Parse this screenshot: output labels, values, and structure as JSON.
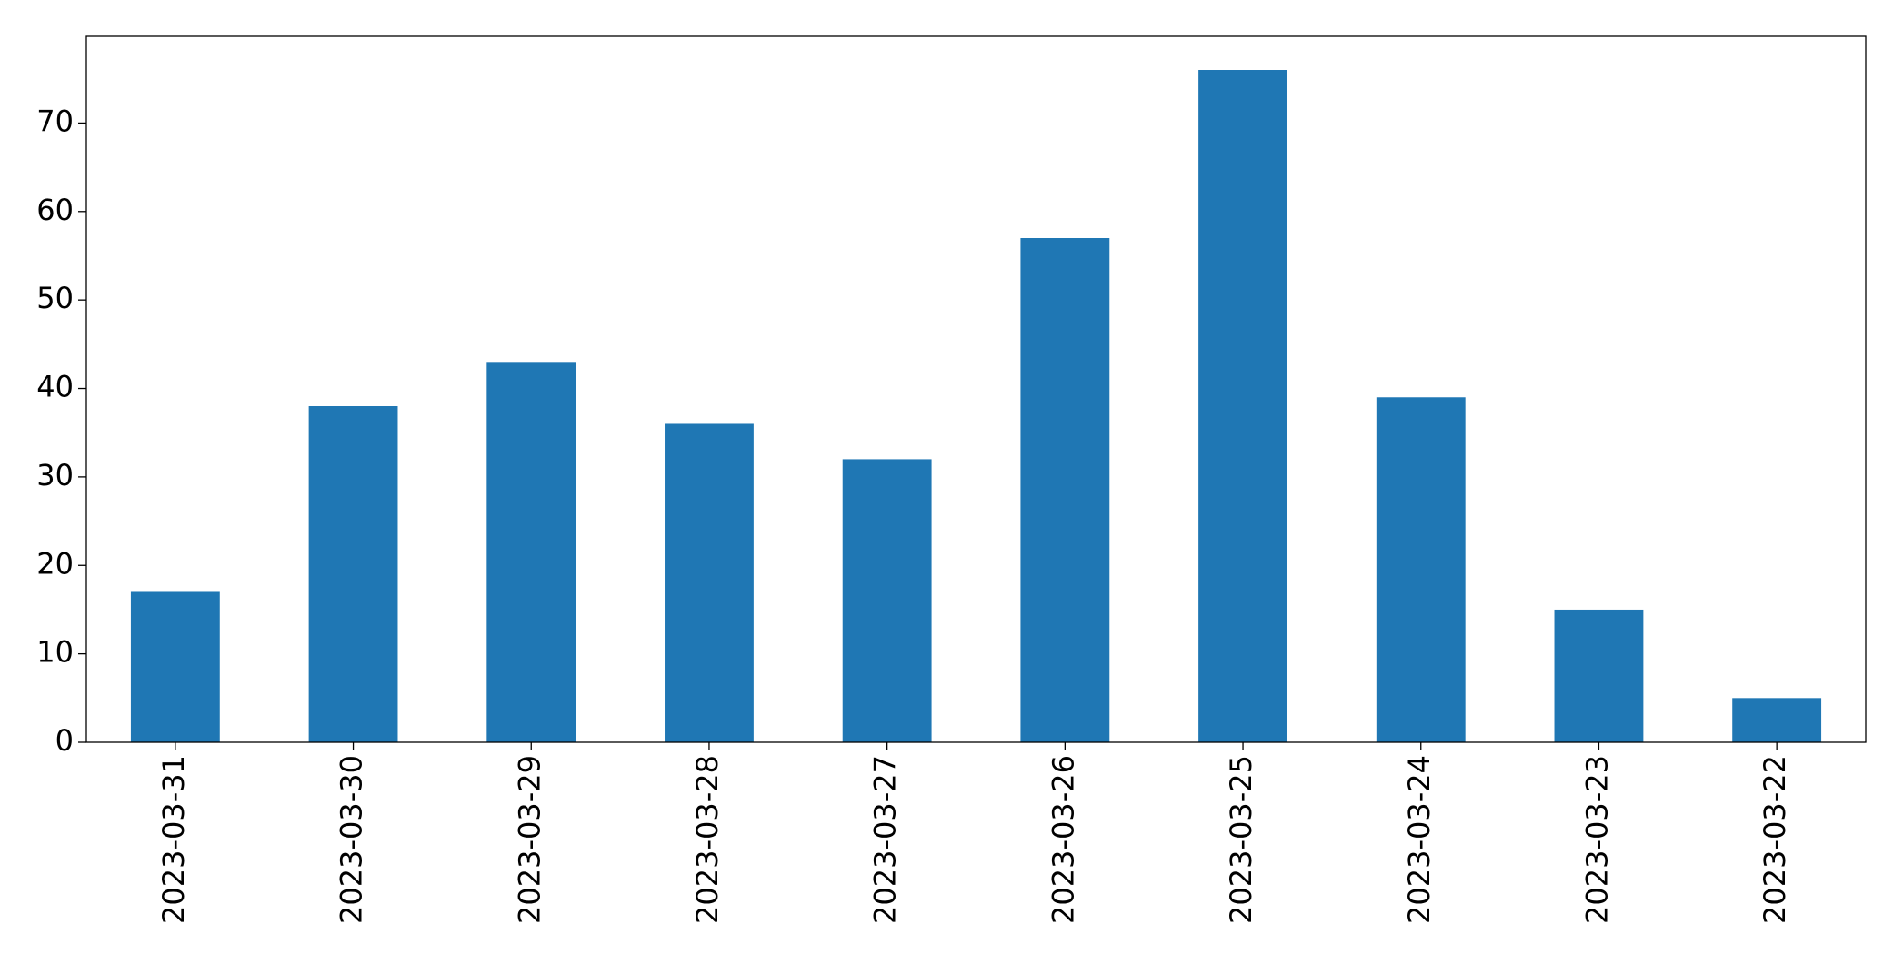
{
  "chart_data": {
    "type": "bar",
    "categories": [
      "2023-03-31",
      "2023-03-30",
      "2023-03-29",
      "2023-03-28",
      "2023-03-27",
      "2023-03-26",
      "2023-03-25",
      "2023-03-24",
      "2023-03-23",
      "2023-03-22"
    ],
    "values": [
      17,
      38,
      43,
      36,
      32,
      57,
      76,
      39,
      15,
      5
    ],
    "color": "#1f77b4",
    "ylim": [
      0,
      79.8
    ],
    "yticks": [
      0,
      10,
      20,
      30,
      40,
      50,
      60,
      70
    ],
    "grid": false
  }
}
